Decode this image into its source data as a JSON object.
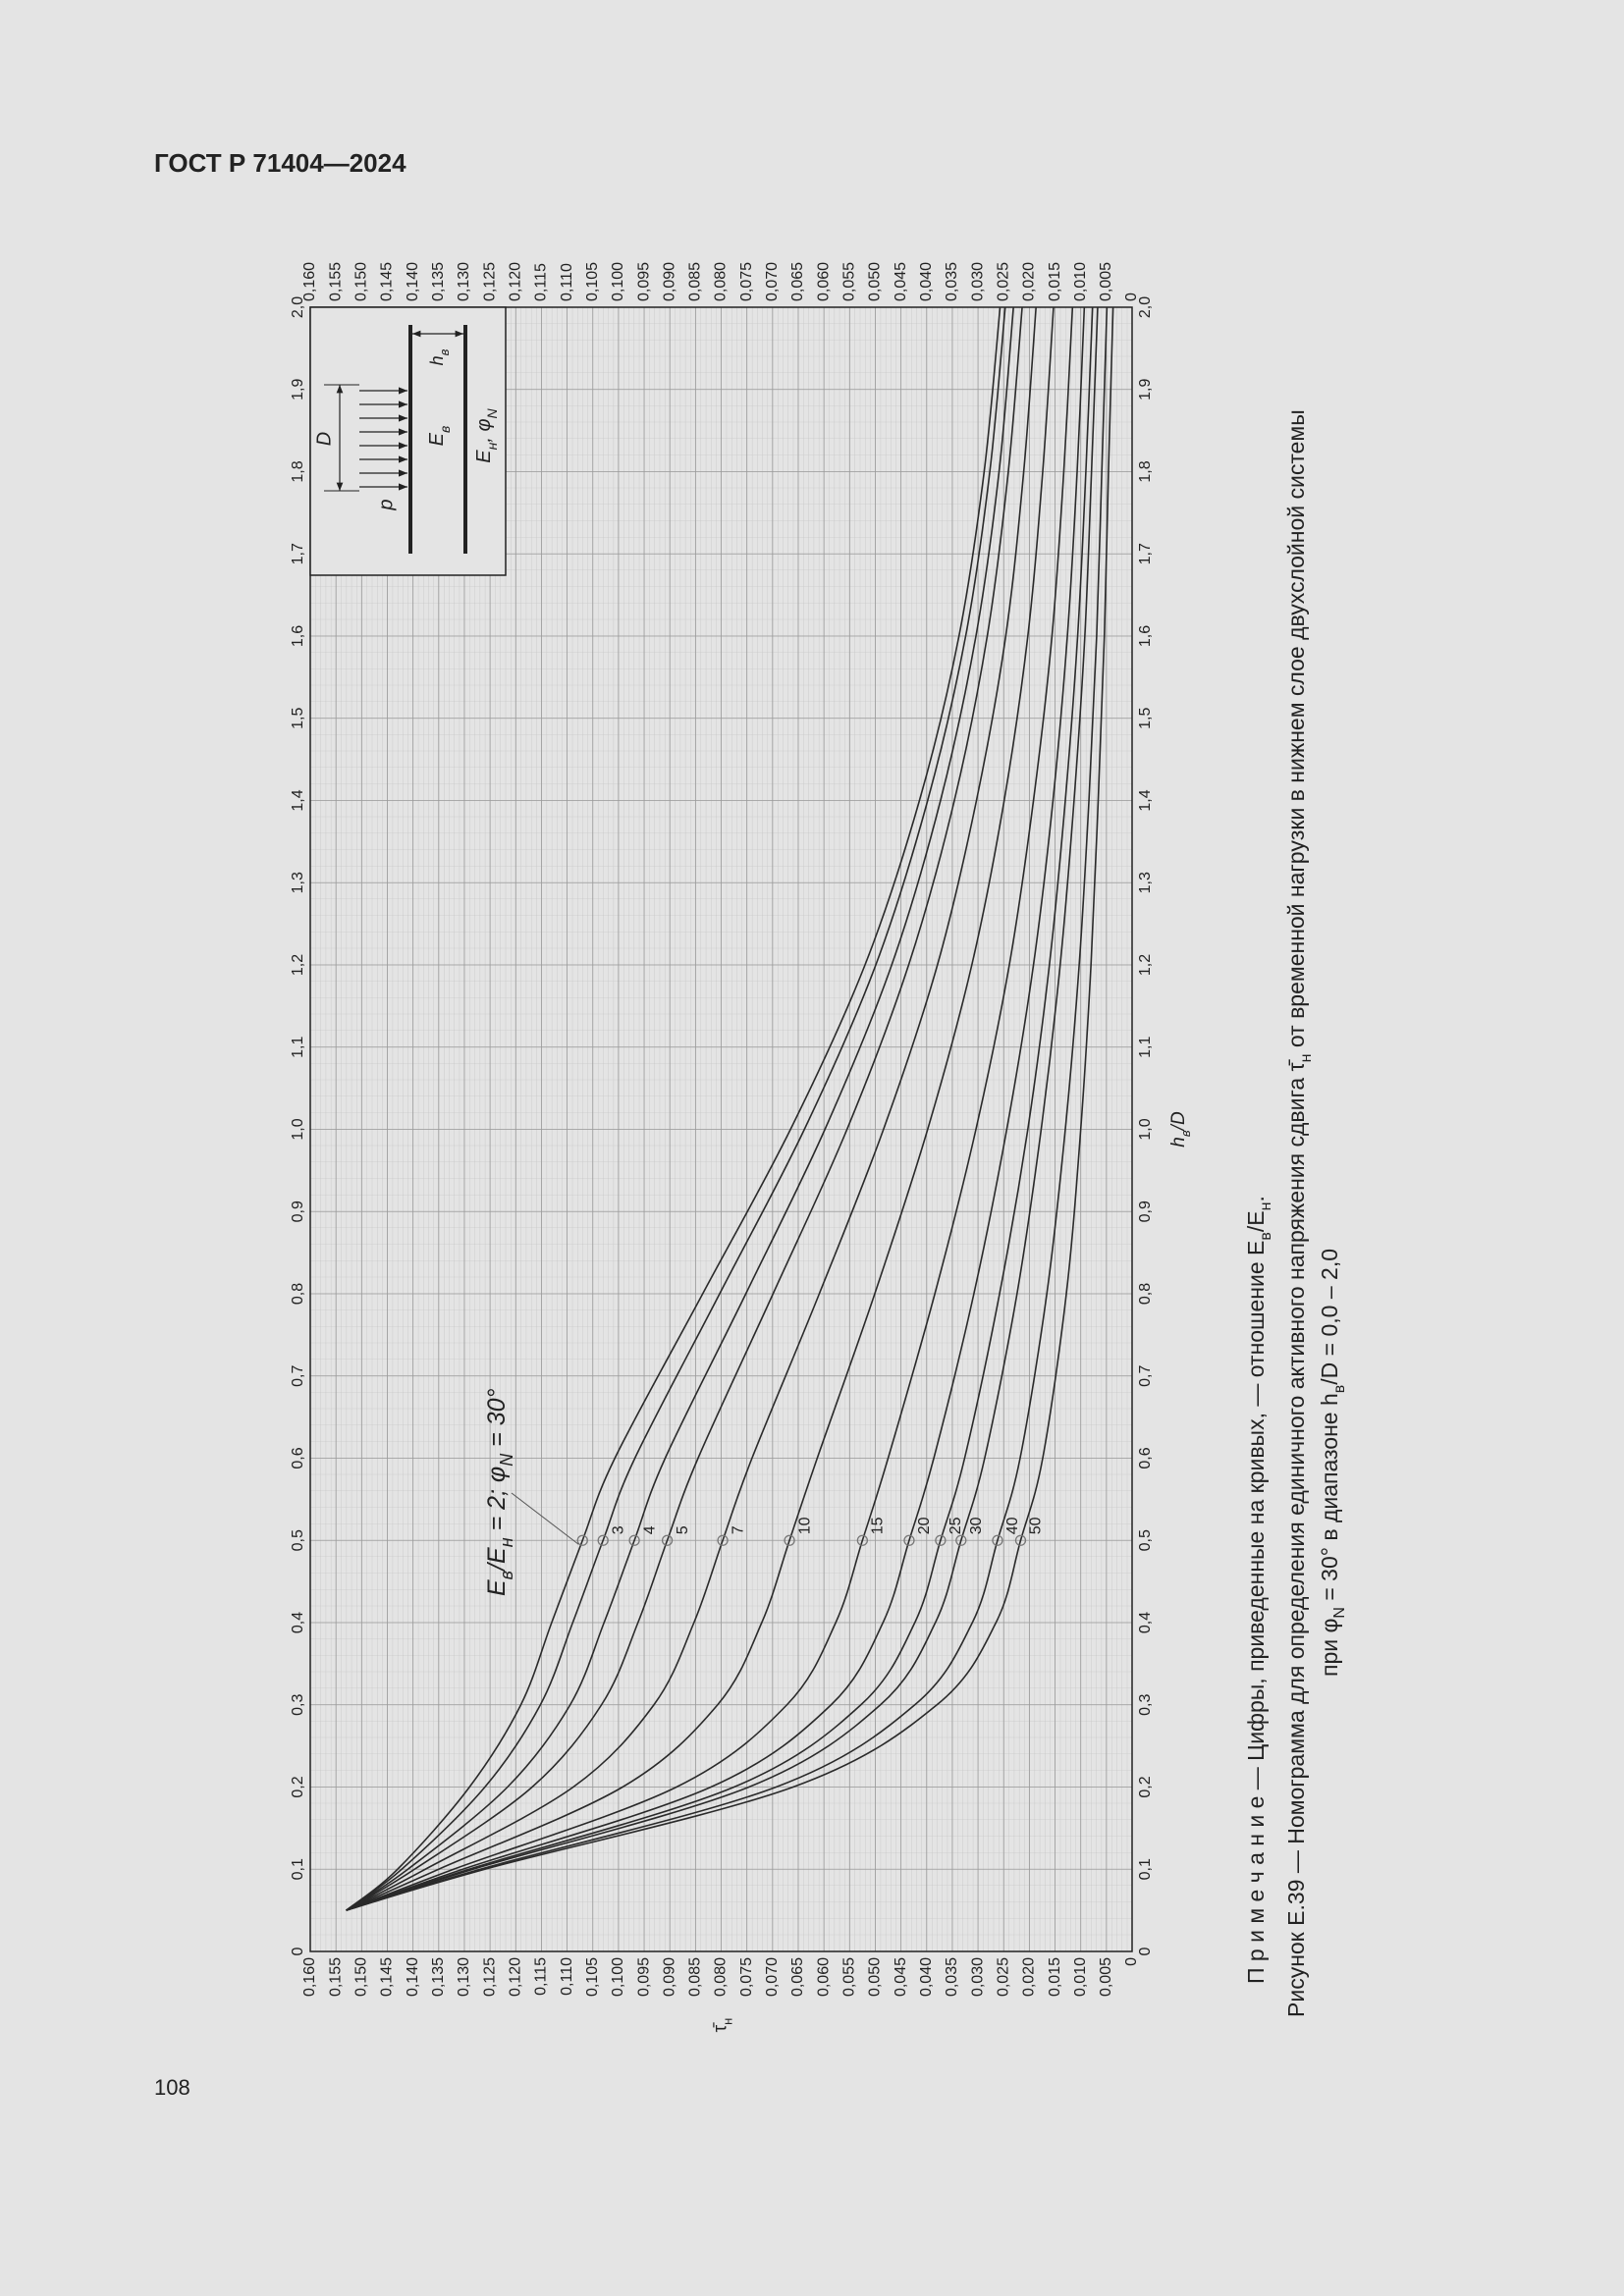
{
  "header": {
    "title": "ГОСТ Р 71404—2024",
    "page_number": "108"
  },
  "chart_data": {
    "type": "line",
    "x": [
      0.05,
      0.1,
      0.2,
      0.3,
      0.4,
      0.5,
      0.6,
      0.8,
      1.0,
      1.2,
      1.4,
      1.6,
      1.8,
      2.0
    ],
    "series": [
      {
        "color": "#2a2a2a",
        "values": [
          0.153,
          0.143,
          0.129,
          0.119,
          0.113,
          0.107,
          0.1007,
          0.0836,
          0.0665,
          0.052,
          0.0414,
          0.0337,
          0.0288,
          0.0257
        ]
      },
      {
        "name": "3",
        "color": "#2a2a2a",
        "values": [
          0.153,
          0.1422,
          0.126,
          0.1152,
          0.1089,
          0.103,
          0.0968,
          0.0803,
          0.0638,
          0.0499,
          0.0398,
          0.0324,
          0.0277,
          0.0247
        ]
      },
      {
        "name": "4",
        "color": "#2a2a2a",
        "values": [
          0.153,
          0.141,
          0.1216,
          0.1094,
          0.1028,
          0.0969,
          0.0909,
          0.0752,
          0.0598,
          0.0468,
          0.0373,
          0.0304,
          0.0259,
          0.0231
        ]
      },
      {
        "name": "5",
        "color": "#2a2a2a",
        "values": [
          0.153,
          0.1397,
          0.1168,
          0.1033,
          0.0962,
          0.0905,
          0.0845,
          0.0699,
          0.0555,
          0.0435,
          0.0346,
          0.0282,
          0.0241,
          0.0214
        ]
      },
      {
        "name": "7",
        "color": "#2a2a2a",
        "values": [
          0.153,
          0.1376,
          0.1088,
          0.0931,
          0.0853,
          0.0797,
          0.074,
          0.0609,
          0.0484,
          0.0379,
          0.0303,
          0.0246,
          0.0211,
          0.0187
        ]
      },
      {
        "name": "10",
        "color": "#2a2a2a",
        "values": [
          0.153,
          0.135,
          0.0992,
          0.0807,
          0.0721,
          0.0667,
          0.0613,
          0.0501,
          0.0398,
          0.0312,
          0.0249,
          0.0203,
          0.0174,
          0.0153
        ]
      },
      {
        "name": "15",
        "color": "#2a2a2a",
        "values": [
          0.153,
          0.1321,
          0.0887,
          0.0672,
          0.0577,
          0.0525,
          0.0475,
          0.0384,
          0.0304,
          0.0239,
          0.0192,
          0.0156,
          0.0133,
          0.0116
        ]
      },
      {
        "name": "20",
        "color": "#2a2a2a",
        "values": [
          0.153,
          0.1303,
          0.082,
          0.0586,
          0.0485,
          0.0434,
          0.0386,
          0.0308,
          0.0244,
          0.0192,
          0.0154,
          0.0126,
          0.0107,
          0.0093
        ]
      },
      {
        "name": "25",
        "color": "#2a2a2a",
        "values": [
          0.153,
          0.1291,
          0.0775,
          0.0528,
          0.0423,
          0.0373,
          0.0326,
          0.0258,
          0.0203,
          0.0161,
          0.013,
          0.0106,
          0.009,
          0.0077
        ]
      },
      {
        "name": "30",
        "color": "#2a2a2a",
        "values": [
          0.153,
          0.1283,
          0.0746,
          0.049,
          0.0383,
          0.0333,
          0.0287,
          0.0224,
          0.0177,
          0.014,
          0.0113,
          0.0092,
          0.0079,
          0.0067
        ]
      },
      {
        "name": "40",
        "color": "#2a2a2a",
        "values": [
          0.153,
          0.1269,
          0.0693,
          0.0423,
          0.0311,
          0.0262,
          0.0218,
          0.0166,
          0.013,
          0.0103,
          0.0084,
          0.0069,
          0.0059,
          0.0049
        ]
      },
      {
        "name": "50",
        "color": "#2a2a2a",
        "values": [
          0.153,
          0.126,
          0.066,
          0.038,
          0.0265,
          0.0217,
          0.0174,
          0.0128,
          0.01,
          0.008,
          0.0066,
          0.0054,
          0.0046,
          0.0037
        ]
      }
    ],
    "xlim": [
      0,
      2
    ],
    "ylim": [
      0,
      0.16
    ],
    "xticks": [
      0,
      {
        "value": 0.1,
        "label": "0,1"
      },
      {
        "value": 0.2,
        "label": "0,2"
      },
      {
        "value": 0.3,
        "label": "0,3"
      },
      {
        "value": 0.4,
        "label": "0,4"
      },
      {
        "value": 0.5,
        "label": "0,5"
      },
      {
        "value": 0.6,
        "label": "0,6"
      },
      {
        "value": 0.7,
        "label": "0,7"
      },
      {
        "value": 0.8,
        "label": "0,8"
      },
      {
        "value": 0.9,
        "label": "0,9"
      },
      {
        "value": 1,
        "label": "1,0"
      },
      {
        "value": 1.1,
        "label": "1,1"
      },
      {
        "value": 1.2,
        "label": "1,2"
      },
      {
        "value": 1.3,
        "label": "1,3"
      },
      {
        "value": 1.4,
        "label": "1,4"
      },
      {
        "value": 1.5,
        "label": "1,5"
      },
      {
        "value": 1.6,
        "label": "1,6"
      },
      {
        "value": 1.7,
        "label": "1,7"
      },
      {
        "value": 1.8,
        "label": "1,8"
      },
      {
        "value": 1.9,
        "label": "1,9"
      },
      {
        "value": 2,
        "label": "2,0"
      }
    ],
    "yticks": [
      0,
      {
        "value": 0.005,
        "label": "0,005"
      },
      {
        "value": 0.01,
        "label": "0,010"
      },
      {
        "value": 0.015,
        "label": "0,015"
      },
      {
        "value": 0.02,
        "label": "0,020"
      },
      {
        "value": 0.025,
        "label": "0,025"
      },
      {
        "value": 0.03,
        "label": "0,030"
      },
      {
        "value": 0.035,
        "label": "0,035"
      },
      {
        "value": 0.04,
        "label": "0,040"
      },
      {
        "value": 0.045,
        "label": "0,045"
      },
      {
        "value": 0.05,
        "label": "0,050"
      },
      {
        "value": 0.055,
        "label": "0,055"
      },
      {
        "value": 0.06,
        "label": "0,060"
      },
      {
        "value": 0.065,
        "label": "0,065"
      },
      {
        "value": 0.07,
        "label": "0,070"
      },
      {
        "value": 0.075,
        "label": "0,075"
      },
      {
        "value": 0.08,
        "label": "0,080"
      },
      {
        "value": 0.085,
        "label": "0,085"
      },
      {
        "value": 0.09,
        "label": "0,090"
      },
      {
        "value": 0.095,
        "label": "0,095"
      },
      {
        "value": 0.1,
        "label": "0,100"
      },
      {
        "value": 0.105,
        "label": "0,105"
      },
      {
        "value": 0.11,
        "label": "0,110"
      },
      {
        "value": 0.115,
        "label": "0,115"
      },
      {
        "value": 0.12,
        "label": "0,120"
      },
      {
        "value": 0.125,
        "label": "0,125"
      },
      {
        "value": 0.13,
        "label": "0,130"
      },
      {
        "value": 0.135,
        "label": "0,135"
      },
      {
        "value": 0.14,
        "label": "0,140"
      },
      {
        "value": 0.145,
        "label": "0,145"
      },
      {
        "value": 0.15,
        "label": "0,150"
      },
      {
        "value": 0.155,
        "label": "0,155"
      },
      {
        "value": 0.16,
        "label": "0,160"
      }
    ],
    "grid": true,
    "x_label": [
      "h",
      "в",
      "/D"
    ],
    "y_label": [
      "τ̄",
      "н"
    ],
    "annotation": [
      "E",
      "в",
      "/E",
      "н",
      " = 2; φ",
      "N",
      " = 30°"
    ],
    "inset": {
      "load": "p",
      "diameter": "D",
      "upper_layer": [
        "E",
        "в"
      ],
      "lower_layer": [
        "E",
        "н",
        ", φ",
        "N"
      ],
      "thickness": [
        "h",
        "в"
      ]
    }
  },
  "caption": {
    "note": [
      "П р и м е ч а н и е — Цифры, приведенные на кривых, — отношение E",
      "в",
      "/E",
      "н",
      "."
    ],
    "figure": [
      "Рисунок Е.39 — Номограмма для определения единичного активного напряжения сдвига τ̄",
      "н",
      " от временной нагрузки в нижнем слое двухслойной системы"
    ],
    "range": [
      "при φ",
      "N",
      " = 30° в диапазоне h",
      "в",
      "/D = 0,0 – 2,0"
    ]
  }
}
